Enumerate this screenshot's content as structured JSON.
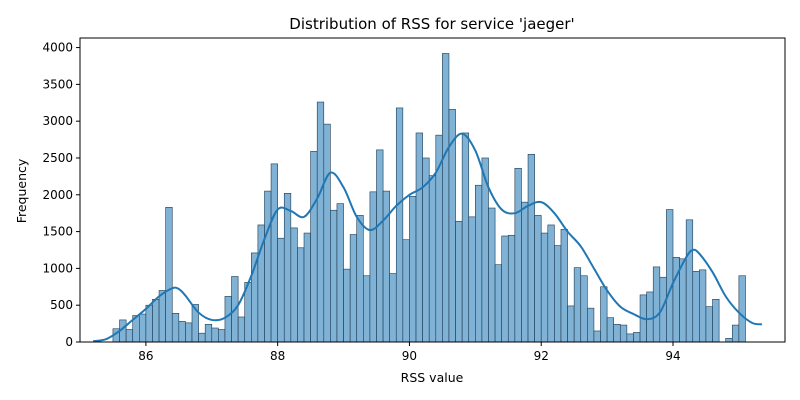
{
  "colors": {
    "bar_fill": "#7fb2d5",
    "bar_edge": "#1f3b52",
    "kde_line": "#1f77b4",
    "axis": "#000000",
    "background": "#ffffff"
  },
  "chart_data": {
    "type": "bar",
    "title": "Distribution of RSS for service 'jaeger'",
    "xlabel": "RSS value",
    "ylabel": "Frequency",
    "xlim": [
      85.0,
      95.7
    ],
    "ylim": [
      0,
      4130
    ],
    "xticks": [
      86,
      88,
      90,
      92,
      94
    ],
    "yticks": [
      0,
      500,
      1000,
      1500,
      2000,
      2500,
      3000,
      3500,
      4000
    ],
    "grid": false,
    "bin_start": 85.2,
    "bin_width": 0.1,
    "values": [
      0,
      0,
      0,
      180,
      300,
      170,
      360,
      380,
      500,
      580,
      700,
      1830,
      390,
      280,
      260,
      510,
      120,
      240,
      190,
      170,
      620,
      890,
      340,
      810,
      1210,
      1590,
      2050,
      2420,
      1410,
      2020,
      1550,
      1280,
      1480,
      2590,
      3260,
      2960,
      1790,
      1880,
      990,
      1460,
      1720,
      900,
      2040,
      2610,
      2050,
      930,
      3180,
      1390,
      1980,
      2840,
      2500,
      2260,
      2810,
      3920,
      3160,
      1640,
      2840,
      1700,
      2130,
      2500,
      1820,
      1050,
      1440,
      1450,
      2360,
      1900,
      2550,
      1720,
      1480,
      1590,
      1310,
      1530,
      490,
      1010,
      900,
      460,
      150,
      750,
      330,
      240,
      230,
      110,
      130,
      640,
      680,
      1020,
      880,
      1800,
      1150,
      1130,
      1660,
      960,
      980,
      480,
      580,
      0,
      50,
      230,
      900
    ],
    "kde": {
      "x": [
        85.2,
        85.4,
        85.6,
        85.8,
        86.0,
        86.2,
        86.4,
        86.5,
        86.6,
        86.8,
        87.0,
        87.2,
        87.4,
        87.6,
        87.8,
        88.0,
        88.2,
        88.4,
        88.6,
        88.8,
        89.0,
        89.2,
        89.4,
        89.6,
        89.8,
        90.0,
        90.2,
        90.4,
        90.6,
        90.8,
        91.0,
        91.2,
        91.4,
        91.6,
        91.8,
        92.0,
        92.2,
        92.4,
        92.6,
        92.8,
        93.0,
        93.2,
        93.4,
        93.6,
        93.8,
        94.0,
        94.2,
        94.3,
        94.4,
        94.6,
        94.8,
        95.0,
        95.2,
        95.35
      ],
      "y": [
        10,
        40,
        150,
        300,
        450,
        620,
        730,
        720,
        630,
        400,
        300,
        330,
        500,
        900,
        1400,
        1800,
        1780,
        1700,
        1950,
        2300,
        2100,
        1700,
        1520,
        1650,
        1850,
        2000,
        2100,
        2300,
        2650,
        2830,
        2600,
        2100,
        1800,
        1750,
        1850,
        1900,
        1750,
        1500,
        1300,
        1000,
        700,
        480,
        380,
        310,
        400,
        800,
        1150,
        1250,
        1200,
        950,
        620,
        400,
        260,
        240
      ]
    }
  }
}
